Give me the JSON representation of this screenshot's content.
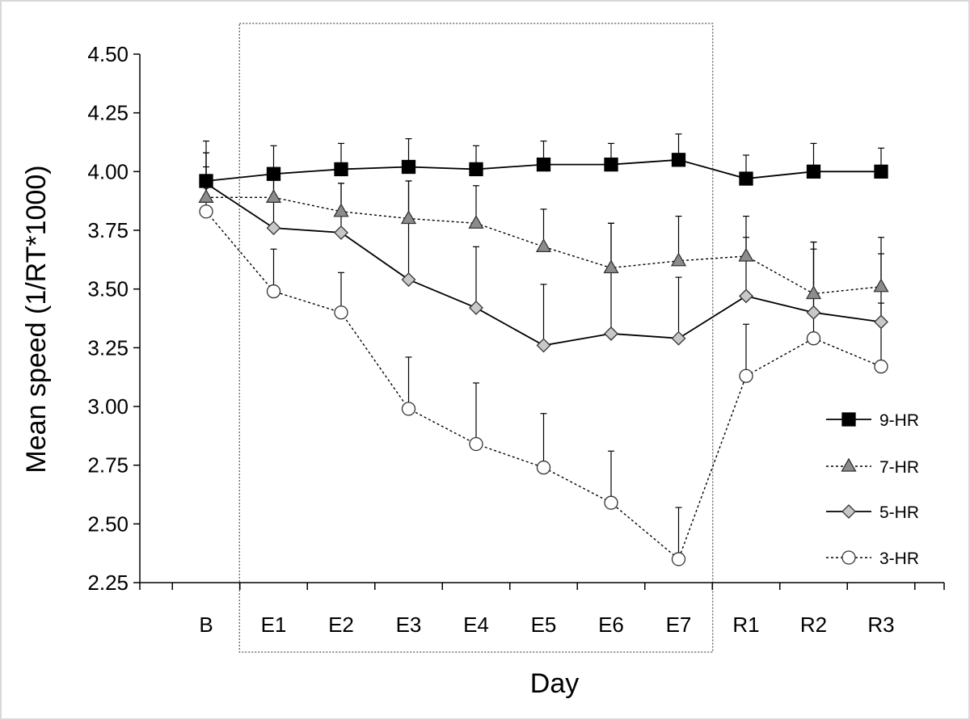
{
  "chart_data": {
    "type": "line",
    "xlabel": "Day",
    "ylabel": "Mean speed (1/RT*1000)",
    "ylim": [
      2.25,
      4.5
    ],
    "y_ticks": [
      "2.25",
      "2.50",
      "2.75",
      "3.00",
      "3.25",
      "3.50",
      "3.75",
      "4.00",
      "4.25",
      "4.50"
    ],
    "categories": [
      "B",
      "E1",
      "E2",
      "E3",
      "E4",
      "E5",
      "E6",
      "E7",
      "R1",
      "R2",
      "R3"
    ],
    "grid": false,
    "legend_position": "right",
    "highlight_region": {
      "from": "E1",
      "to": "E7",
      "style": "dotted-box"
    },
    "series": [
      {
        "name": "9-HR",
        "marker": "square",
        "line": "solid",
        "marker_fill": "#000000",
        "values": [
          3.96,
          3.99,
          4.01,
          4.02,
          4.01,
          4.03,
          4.03,
          4.05,
          3.97,
          4.0,
          4.0
        ],
        "error": [
          0.17,
          0.12,
          0.11,
          0.12,
          0.1,
          0.1,
          0.09,
          0.11,
          0.1,
          0.12,
          0.1
        ]
      },
      {
        "name": "7-HR",
        "marker": "triangle",
        "line": "dotted",
        "marker_fill": "#8c8c8c",
        "values": [
          3.89,
          3.89,
          3.83,
          3.8,
          3.78,
          3.68,
          3.59,
          3.62,
          3.64,
          3.48,
          3.51
        ],
        "error": [
          0.19,
          0.1,
          0.12,
          0.16,
          0.16,
          0.16,
          0.19,
          0.19,
          0.17,
          0.22,
          0.21
        ]
      },
      {
        "name": "5-HR",
        "marker": "diamond",
        "line": "solid",
        "marker_fill": "#c8c8c8",
        "values": [
          3.95,
          3.76,
          3.74,
          3.54,
          3.42,
          3.26,
          3.31,
          3.29,
          3.47,
          3.4,
          3.36
        ],
        "error": [
          0.13,
          0.21,
          0.21,
          0.42,
          0.26,
          0.26,
          0.47,
          0.26,
          0.25,
          0.3,
          0.29
        ]
      },
      {
        "name": "3-HR",
        "marker": "circle",
        "line": "dotted",
        "marker_fill": "#ffffff",
        "values": [
          3.83,
          3.49,
          3.4,
          2.99,
          2.84,
          2.74,
          2.59,
          2.35,
          3.13,
          3.29,
          3.17
        ],
        "error": [
          0.19,
          0.18,
          0.17,
          0.22,
          0.26,
          0.23,
          0.22,
          0.22,
          0.22,
          0.38,
          0.27
        ]
      }
    ]
  }
}
